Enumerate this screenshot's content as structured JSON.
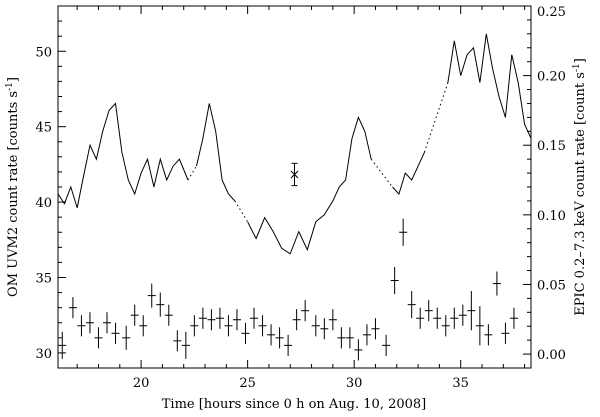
{
  "chart_data": {
    "type": "line",
    "xlabel": "Time [hours since 0 h on Aug. 10, 2008]",
    "ylabel_left": "OM UVM2 count rate [counts s",
    "ylabel_left_sup": "-1",
    "ylabel_left_end": "]",
    "ylabel_right": "EPIC 0.2–7.3 keV count rate [count s",
    "ylabel_right_sup": "-1",
    "ylabel_right_end": "]",
    "xlim": [
      16.1,
      38.3
    ],
    "ylim_left": [
      29,
      53
    ],
    "ylim_right": [
      -0.01,
      0.25
    ],
    "x_ticks": [
      20,
      25,
      30,
      35
    ],
    "y_left_ticks": [
      30,
      35,
      40,
      45,
      50
    ],
    "y_right_ticks": [
      "0.00",
      "0.05",
      "0.10",
      "0.15",
      "0.20",
      "0.25"
    ],
    "grid": false,
    "series": [
      {
        "axis": "right",
        "style": "solid-segments-dotted-gaps",
        "segments": [
          {
            "x": [
              16.1,
              16.4,
              16.7,
              17.0,
              17.3,
              17.6,
              17.9,
              18.2,
              18.5,
              18.8,
              19.1,
              19.4,
              19.7,
              20.0,
              20.3,
              20.6,
              20.9,
              21.2,
              21.5,
              21.8,
              22.2
            ],
            "y": [
              0.115,
              0.108,
              0.12,
              0.105,
              0.128,
              0.15,
              0.14,
              0.16,
              0.175,
              0.18,
              0.145,
              0.125,
              0.115,
              0.13,
              0.14,
              0.12,
              0.14,
              0.125,
              0.135,
              0.14,
              0.125
            ]
          },
          {
            "x": [
              22.6,
              22.9,
              23.2,
              23.5,
              23.8,
              24.1,
              24.4
            ],
            "y": [
              0.135,
              0.155,
              0.18,
              0.16,
              0.125,
              0.115,
              0.11
            ]
          },
          {
            "x": [
              25.0,
              25.4,
              25.8,
              26.2,
              26.6,
              27.0,
              27.4,
              27.8,
              28.2,
              28.6,
              29.0,
              29.3,
              29.6,
              29.9,
              30.2,
              30.5,
              30.8
            ],
            "y": [
              0.095,
              0.083,
              0.098,
              0.088,
              0.076,
              0.072,
              0.088,
              0.075,
              0.095,
              0.1,
              0.11,
              0.12,
              0.125,
              0.155,
              0.17,
              0.16,
              0.14
            ]
          },
          {
            "x": [
              31.8,
              32.1,
              32.4,
              32.7,
              33.0,
              33.3
            ],
            "y": [
              0.12,
              0.115,
              0.13,
              0.125,
              0.135,
              0.145
            ]
          },
          {
            "x": [
              34.4,
              34.7,
              35.0,
              35.3,
              35.6,
              35.9,
              36.2,
              36.5,
              36.8,
              37.1,
              37.4,
              37.7,
              38.0,
              38.3
            ],
            "y": [
              0.195,
              0.225,
              0.2,
              0.215,
              0.22,
              0.195,
              0.23,
              0.205,
              0.185,
              0.17,
              0.215,
              0.195,
              0.165,
              0.155
            ]
          }
        ]
      },
      {
        "axis": "left",
        "style": "errorbar",
        "x": [
          16.3,
          16.8,
          17.2,
          17.6,
          18.0,
          18.4,
          18.8,
          19.3,
          19.7,
          20.1,
          20.5,
          20.9,
          21.3,
          21.7,
          22.1,
          22.5,
          22.9,
          23.3,
          23.7,
          24.1,
          24.5,
          24.9,
          25.3,
          25.7,
          26.1,
          26.5,
          26.9,
          27.3,
          27.7,
          28.2,
          28.6,
          29.0,
          29.4,
          29.8,
          30.2,
          30.6,
          31.0,
          31.5,
          31.9,
          32.3,
          32.7,
          33.1,
          33.5,
          33.9,
          34.3,
          34.7,
          35.1,
          35.5,
          35.9,
          36.3,
          36.7,
          37.1,
          37.5
        ],
        "y": [
          30.5,
          33.0,
          31.8,
          32.0,
          31.0,
          32.0,
          31.3,
          31.0,
          32.5,
          31.8,
          33.8,
          33.2,
          32.5,
          30.8,
          30.5,
          31.8,
          32.3,
          32.2,
          32.3,
          31.8,
          32.2,
          31.3,
          32.3,
          31.8,
          31.2,
          31.0,
          30.5,
          32.2,
          32.8,
          31.8,
          31.6,
          32.2,
          31.0,
          31.0,
          30.2,
          31.2,
          31.6,
          30.5,
          34.8,
          38.0,
          33.2,
          32.3,
          32.8,
          32.3,
          31.8,
          32.3,
          32.5,
          32.8,
          31.8,
          31.2,
          34.6,
          31.3,
          32.3
        ],
        "err": [
          0.9,
          0.7,
          0.7,
          0.7,
          0.7,
          0.7,
          0.7,
          0.8,
          0.7,
          0.7,
          0.8,
          0.8,
          0.7,
          0.7,
          0.9,
          0.7,
          0.7,
          0.7,
          0.7,
          0.7,
          0.7,
          0.7,
          0.7,
          0.7,
          0.7,
          0.7,
          0.7,
          0.7,
          0.7,
          0.7,
          0.7,
          0.7,
          0.7,
          0.7,
          0.7,
          0.7,
          0.7,
          0.7,
          0.9,
          0.9,
          0.9,
          0.7,
          0.7,
          0.7,
          0.7,
          0.7,
          0.7,
          1.3,
          1.3,
          0.7,
          0.8,
          0.7,
          0.7
        ]
      }
    ],
    "annotations": [
      {
        "type": "representative-errorbar",
        "axis": "right",
        "x": 27.2,
        "y": 0.129,
        "err": 0.008
      }
    ]
  }
}
